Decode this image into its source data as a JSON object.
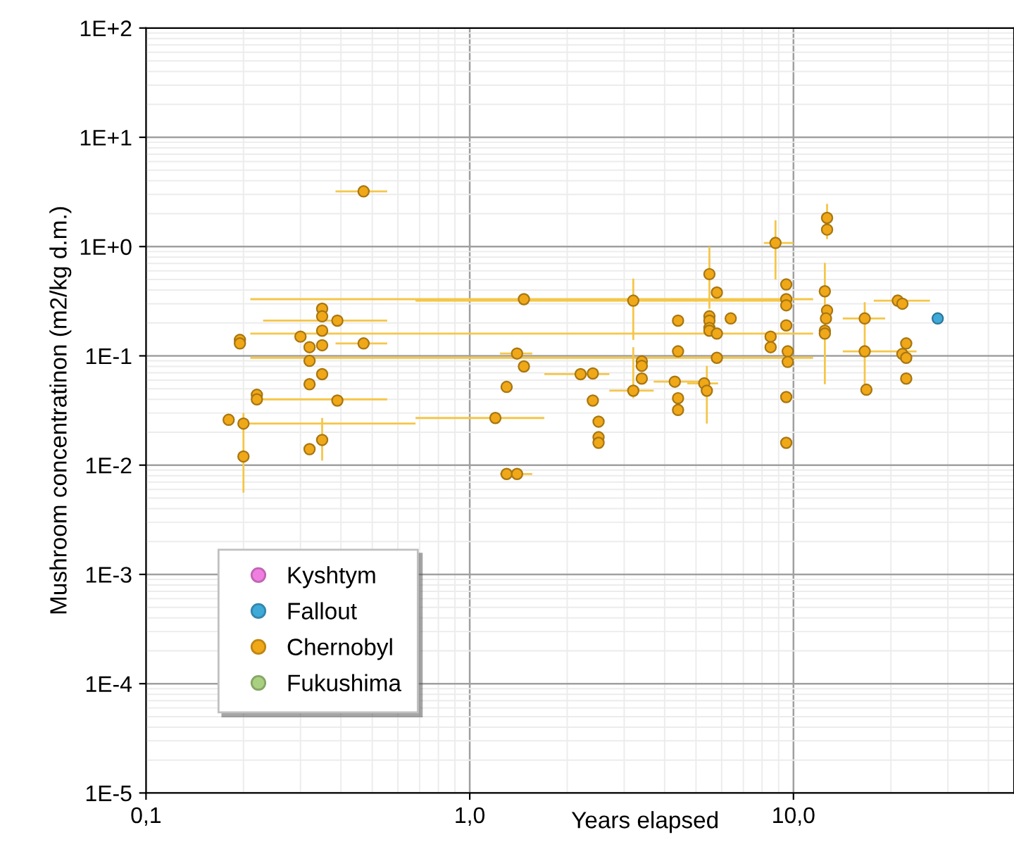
{
  "chart_data": {
    "type": "scatter",
    "ylabel": "Mushroom concentratinon (m2/kg d.m.)",
    "xlabel": "Years elapsed",
    "log": "xy",
    "grid": true,
    "legend": "bottom left",
    "marker": "circle",
    "xlim": [
      0.1,
      48
    ],
    "xticks": [
      {
        "value": 0.1,
        "label": "0,1"
      },
      {
        "value": 1,
        "label": "1,0"
      },
      {
        "value": 10,
        "label": "10,0"
      }
    ],
    "ylim": [
      1e-05,
      100
    ],
    "yticks": [
      {
        "value": 1e-05,
        "label": "1E-5"
      },
      {
        "value": 0.0001,
        "label": "1E-4"
      },
      {
        "value": 0.001,
        "label": "1E-3"
      },
      {
        "value": 0.01,
        "label": "1E-2"
      },
      {
        "value": 0.1,
        "label": "1E-1"
      },
      {
        "value": 1,
        "label": "1E+0"
      },
      {
        "value": 10,
        "label": "1E+1"
      },
      {
        "value": 100,
        "label": "1E+2"
      }
    ],
    "series": [
      {
        "name": "Kyshtym",
        "color": "#f07ee0"
      },
      {
        "name": "Fallout",
        "color": "#3fa9d8",
        "x": [
          27.9
        ],
        "values": [
          0.22
        ]
      },
      {
        "name": "Chernobyl",
        "color": "#f0a818",
        "x": [
          0.47,
          0.35,
          0.35,
          0.39,
          0.35,
          0.195,
          0.195,
          0.3,
          0.47,
          0.35,
          0.32,
          0.32,
          0.35,
          0.32,
          0.22,
          0.22,
          0.39,
          0.18,
          0.2,
          0.35,
          0.32,
          0.2,
          1.47,
          3.2,
          5.5,
          5.8,
          4.4,
          5.5,
          5.5,
          5.5,
          5.5,
          5.8,
          6.4,
          4.4,
          5.8,
          1.4,
          1.47,
          3.4,
          3.4,
          3.4,
          2.2,
          2.4,
          1.3,
          4.3,
          5.3,
          5.4,
          3.2,
          2.4,
          4.4,
          4.4,
          2.5,
          2.5,
          2.5,
          1.2,
          1.3,
          1.4,
          8.8,
          9.5,
          9.5,
          9.5,
          9.5,
          8.5,
          8.5,
          9.6,
          9.6,
          9.5,
          9.5,
          12.7,
          12.7,
          12.5,
          12.7,
          12.6,
          12.5,
          12.5,
          16.6,
          16.6,
          16.8,
          21,
          21.7,
          22.3,
          21.7,
          22.3,
          22.3
        ],
        "values": [
          3.2,
          0.27,
          0.23,
          0.21,
          0.17,
          0.14,
          0.13,
          0.15,
          0.13,
          0.125,
          0.12,
          0.09,
          0.068,
          0.055,
          0.044,
          0.04,
          0.039,
          0.026,
          0.024,
          0.017,
          0.014,
          0.012,
          0.33,
          0.32,
          0.56,
          0.38,
          0.21,
          0.23,
          0.21,
          0.18,
          0.17,
          0.16,
          0.22,
          0.11,
          0.096,
          0.105,
          0.08,
          0.089,
          0.081,
          0.062,
          0.068,
          0.069,
          0.052,
          0.058,
          0.056,
          0.048,
          0.048,
          0.039,
          0.041,
          0.032,
          0.025,
          0.018,
          0.016,
          0.027,
          0.0083,
          0.0083,
          1.08,
          0.45,
          0.33,
          0.29,
          0.19,
          0.15,
          0.12,
          0.11,
          0.088,
          0.042,
          0.016,
          1.83,
          1.43,
          0.39,
          0.26,
          0.22,
          0.17,
          0.16,
          0.22,
          0.11,
          0.049,
          0.32,
          0.3,
          0.13,
          0.104,
          0.096,
          0.062
        ],
        "xerrors": [
          [
            0.385,
            0.556
          ],
          null,
          null,
          [
            0.23,
            0.556
          ],
          null,
          null,
          null,
          null,
          [
            0.385,
            0.556
          ],
          null,
          null,
          null,
          null,
          null,
          null,
          [
            0.22,
            0.556
          ],
          null,
          null,
          [
            0.2,
            0.68
          ],
          null,
          null,
          null,
          [
            0.21,
            11.5
          ],
          [
            0.68,
            9.9
          ],
          null,
          null,
          null,
          null,
          null,
          null,
          null,
          [
            0.21,
            11.5
          ],
          null,
          null,
          [
            0.21,
            11.5
          ],
          [
            1.24,
            1.56
          ],
          null,
          null,
          null,
          null,
          [
            1.7,
            2.7
          ],
          null,
          null,
          [
            3.7,
            5.1
          ],
          [
            4.7,
            5.85
          ],
          null,
          [
            2.7,
            3.7
          ],
          null,
          null,
          null,
          null,
          null,
          null,
          [
            0.68,
            1.7
          ],
          null,
          [
            1.24,
            1.56
          ],
          [
            8.1,
            10
          ],
          null,
          null,
          null,
          null,
          null,
          null,
          null,
          null,
          null,
          null,
          null,
          null,
          null,
          null,
          null,
          null,
          null,
          [
            14.2,
            19.2
          ],
          [
            14.2,
            24
          ],
          null,
          [
            17.7,
            26.4
          ],
          null,
          null,
          null,
          null,
          null
        ],
        "errors": [
          null,
          null,
          null,
          null,
          null,
          null,
          null,
          null,
          null,
          null,
          null,
          null,
          null,
          null,
          null,
          null,
          null,
          null,
          [
            0.0056,
            0.03
          ],
          [
            0.011,
            0.027
          ],
          null,
          null,
          null,
          [
            0.14,
            0.51
          ],
          [
            0.27,
            1.0
          ],
          null,
          null,
          null,
          null,
          null,
          null,
          null,
          null,
          null,
          null,
          null,
          null,
          null,
          null,
          null,
          null,
          null,
          null,
          null,
          null,
          [
            0.024,
            0.081
          ],
          [
            0.041,
            0.12
          ],
          null,
          null,
          null,
          null,
          null,
          null,
          null,
          null,
          null,
          [
            0.5,
            1.74
          ],
          null,
          null,
          null,
          null,
          null,
          null,
          null,
          null,
          null,
          null,
          null,
          [
            1.17,
            2.46
          ],
          [
            0.055,
            0.71
          ],
          null,
          null,
          null,
          null,
          [
            0.049,
            0.31
          ],
          null,
          null,
          null,
          null,
          null,
          null,
          null,
          null
        ]
      },
      {
        "name": "Fukushima",
        "color": "#a8d080"
      }
    ]
  }
}
